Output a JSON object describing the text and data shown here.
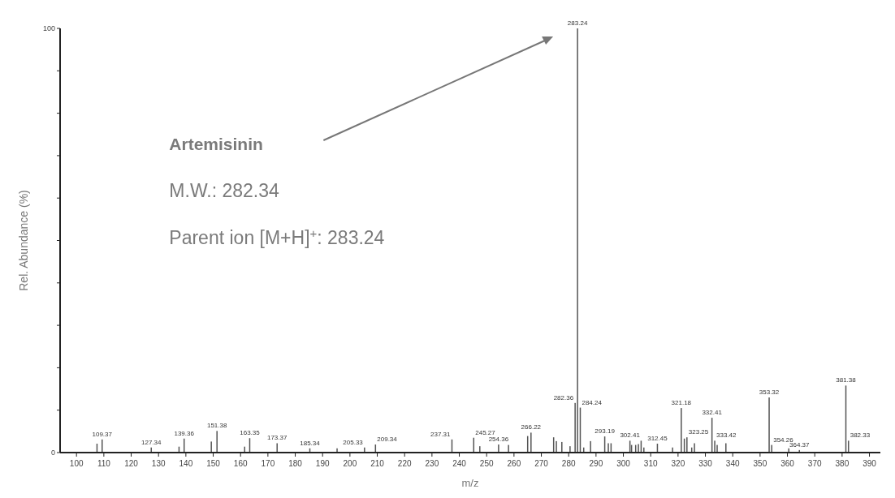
{
  "chart_data": {
    "type": "bar",
    "xlabel": "m/z",
    "ylabel": "Rel. Abundance (%)",
    "xlim": [
      94,
      394
    ],
    "ylim": [
      0,
      100
    ],
    "xticks": [
      100,
      110,
      120,
      130,
      140,
      150,
      160,
      170,
      180,
      190,
      200,
      210,
      220,
      230,
      240,
      250,
      260,
      270,
      280,
      290,
      300,
      310,
      320,
      330,
      340,
      350,
      360,
      370,
      380,
      390
    ],
    "yticks": [
      0,
      {
        "value": 10,
        "label": null
      },
      {
        "value": 20,
        "label": null
      },
      {
        "value": 30,
        "label": null
      },
      {
        "value": 40,
        "label": null
      },
      {
        "value": 50,
        "label": null
      },
      {
        "value": 60,
        "label": null
      },
      {
        "value": 70,
        "label": null
      },
      {
        "value": 80,
        "label": null
      },
      {
        "value": 90,
        "label": null
      },
      100
    ],
    "grid": false,
    "series": [
      {
        "color": "#555555",
        "x": [
          107.5,
          109.37,
          127.34,
          137.5,
          139.36,
          149.3,
          151.38,
          161.5,
          163.35,
          173.37,
          185.34,
          195.3,
          205.33,
          209.34,
          237.31,
          245.27,
          247.5,
          254.36,
          258,
          265,
          266.22,
          274.5,
          275.5,
          277.5,
          280.5,
          282.36,
          283.24,
          284.24,
          285.5,
          288,
          293.19,
          294.5,
          295.5,
          302.41,
          303,
          304.5,
          305.5,
          306.5,
          307.5,
          312.45,
          318,
          321.18,
          322.3,
          323.25,
          325,
          326,
          332.41,
          333.42,
          334.3,
          337.5,
          353.32,
          354.26,
          360.5,
          364.37,
          381.38,
          382.33
        ],
        "values": [
          2.1,
          3.1,
          1.2,
          1.4,
          3.3,
          2.6,
          5.1,
          1.4,
          3.4,
          2.2,
          1.0,
          1.0,
          1.2,
          1.9,
          3.1,
          3.5,
          1.5,
          1.9,
          1.8,
          3.9,
          4.7,
          3.6,
          2.7,
          2.5,
          1.5,
          11.7,
          100,
          10.6,
          1.2,
          2.7,
          3.8,
          2.2,
          2.2,
          2.8,
          1.8,
          1.8,
          2.0,
          2.8,
          1.2,
          2.1,
          1.2,
          10.5,
          3.3,
          3.6,
          1.2,
          2.2,
          8.2,
          2.8,
          1.8,
          2.2,
          13.0,
          1.8,
          1.0,
          0.6,
          15.8,
          2.8
        ]
      }
    ],
    "annotations": [
      {
        "text": "109.37",
        "x": 109.37,
        "y": 3.1
      },
      {
        "text": "127.34",
        "x": 127.34,
        "y": 1.2
      },
      {
        "text": "139.36",
        "x": 139.36,
        "y": 3.3
      },
      {
        "text": "151.38",
        "x": 151.38,
        "y": 5.1
      },
      {
        "text": "163.35",
        "x": 163.35,
        "y": 3.4
      },
      {
        "text": "173.37",
        "x": 173.37,
        "y": 2.2
      },
      {
        "text": "185.34",
        "x": 185.34,
        "y": 1.0
      },
      {
        "text": "205.33",
        "x": 205.33,
        "y": 1.2
      },
      {
        "text": "209.34",
        "x": 209.34,
        "y": 1.9
      },
      {
        "text": "237.31",
        "x": 237.31,
        "y": 3.1
      },
      {
        "text": "245.27",
        "x": 245.27,
        "y": 3.5
      },
      {
        "text": "254.36",
        "x": 254.36,
        "y": 1.9
      },
      {
        "text": "266.22",
        "x": 266.22,
        "y": 4.7
      },
      {
        "text": "282.36",
        "x": 282.36,
        "y": 11.7
      },
      {
        "text": "283.24",
        "x": 283.24,
        "y": 100
      },
      {
        "text": "284.24",
        "x": 284.24,
        "y": 10.6
      },
      {
        "text": "293.19",
        "x": 293.19,
        "y": 3.8
      },
      {
        "text": "302.41",
        "x": 302.41,
        "y": 2.8
      },
      {
        "text": "312.45",
        "x": 312.45,
        "y": 2.1
      },
      {
        "text": "321.18",
        "x": 321.18,
        "y": 10.5
      },
      {
        "text": "323.25",
        "x": 323.25,
        "y": 3.6
      },
      {
        "text": "332.41",
        "x": 332.41,
        "y": 8.2
      },
      {
        "text": "333.42",
        "x": 333.42,
        "y": 2.8
      },
      {
        "text": "353.32",
        "x": 353.32,
        "y": 13.0
      },
      {
        "text": "354.26",
        "x": 354.26,
        "y": 1.8
      },
      {
        "text": "364.37",
        "x": 364.37,
        "y": 0.6
      },
      {
        "text": "381.38",
        "x": 381.38,
        "y": 15.8
      },
      {
        "text": "382.33",
        "x": 382.33,
        "y": 2.8
      },
      "Artemisinin",
      "M.W.: 282.34",
      "Parent ion [M+H]$^{+}$: 283.24"
    ]
  }
}
